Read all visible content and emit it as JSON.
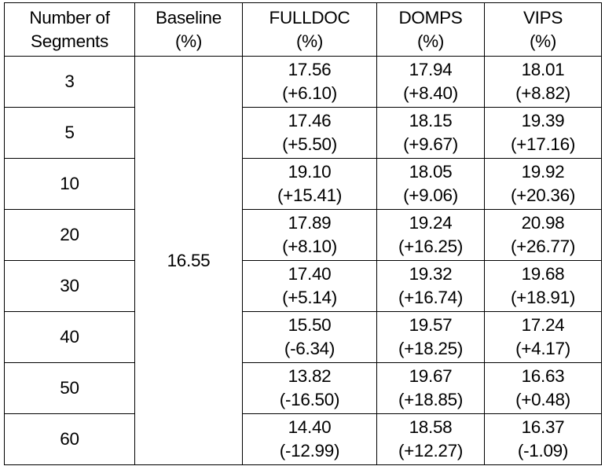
{
  "table": {
    "headers": [
      {
        "line1": "Number of",
        "line2": "Segments"
      },
      {
        "line1": "Baseline",
        "line2": "(%)"
      },
      {
        "line1": "FULLDOC",
        "line2": "(%)"
      },
      {
        "line1": "DOMPS",
        "line2": "(%)"
      },
      {
        "line1": "VIPS",
        "line2": "(%)"
      }
    ],
    "baseline": "16.55",
    "rows": [
      {
        "segments": "3",
        "fulldoc": {
          "value": "17.56",
          "delta": "(+6.10)"
        },
        "domps": {
          "value": "17.94",
          "delta": "(+8.40)"
        },
        "vips": {
          "value": "18.01",
          "delta": "(+8.82)"
        }
      },
      {
        "segments": "5",
        "fulldoc": {
          "value": "17.46",
          "delta": "(+5.50)"
        },
        "domps": {
          "value": "18.15",
          "delta": "(+9.67)"
        },
        "vips": {
          "value": "19.39",
          "delta": "(+17.16)"
        }
      },
      {
        "segments": "10",
        "fulldoc": {
          "value": "19.10",
          "delta": "(+15.41)"
        },
        "domps": {
          "value": "18.05",
          "delta": "(+9.06)"
        },
        "vips": {
          "value": "19.92",
          "delta": "(+20.36)"
        }
      },
      {
        "segments": "20",
        "fulldoc": {
          "value": "17.89",
          "delta": "(+8.10)"
        },
        "domps": {
          "value": "19.24",
          "delta": "(+16.25)"
        },
        "vips": {
          "value": "20.98",
          "delta": "(+26.77)"
        }
      },
      {
        "segments": "30",
        "fulldoc": {
          "value": "17.40",
          "delta": "(+5.14)"
        },
        "domps": {
          "value": "19.32",
          "delta": "(+16.74)"
        },
        "vips": {
          "value": "19.68",
          "delta": "(+18.91)"
        }
      },
      {
        "segments": "40",
        "fulldoc": {
          "value": "15.50",
          "delta": "(-6.34)"
        },
        "domps": {
          "value": "19.57",
          "delta": "(+18.25)"
        },
        "vips": {
          "value": "17.24",
          "delta": "(+4.17)"
        }
      },
      {
        "segments": "50",
        "fulldoc": {
          "value": "13.82",
          "delta": "(-16.50)"
        },
        "domps": {
          "value": "19.67",
          "delta": "(+18.85)"
        },
        "vips": {
          "value": "16.63",
          "delta": "(+0.48)"
        }
      },
      {
        "segments": "60",
        "fulldoc": {
          "value": "14.40",
          "delta": "(-12.99)"
        },
        "domps": {
          "value": "18.58",
          "delta": "(+12.27)"
        },
        "vips": {
          "value": "16.37",
          "delta": "(-1.09)"
        }
      }
    ]
  }
}
